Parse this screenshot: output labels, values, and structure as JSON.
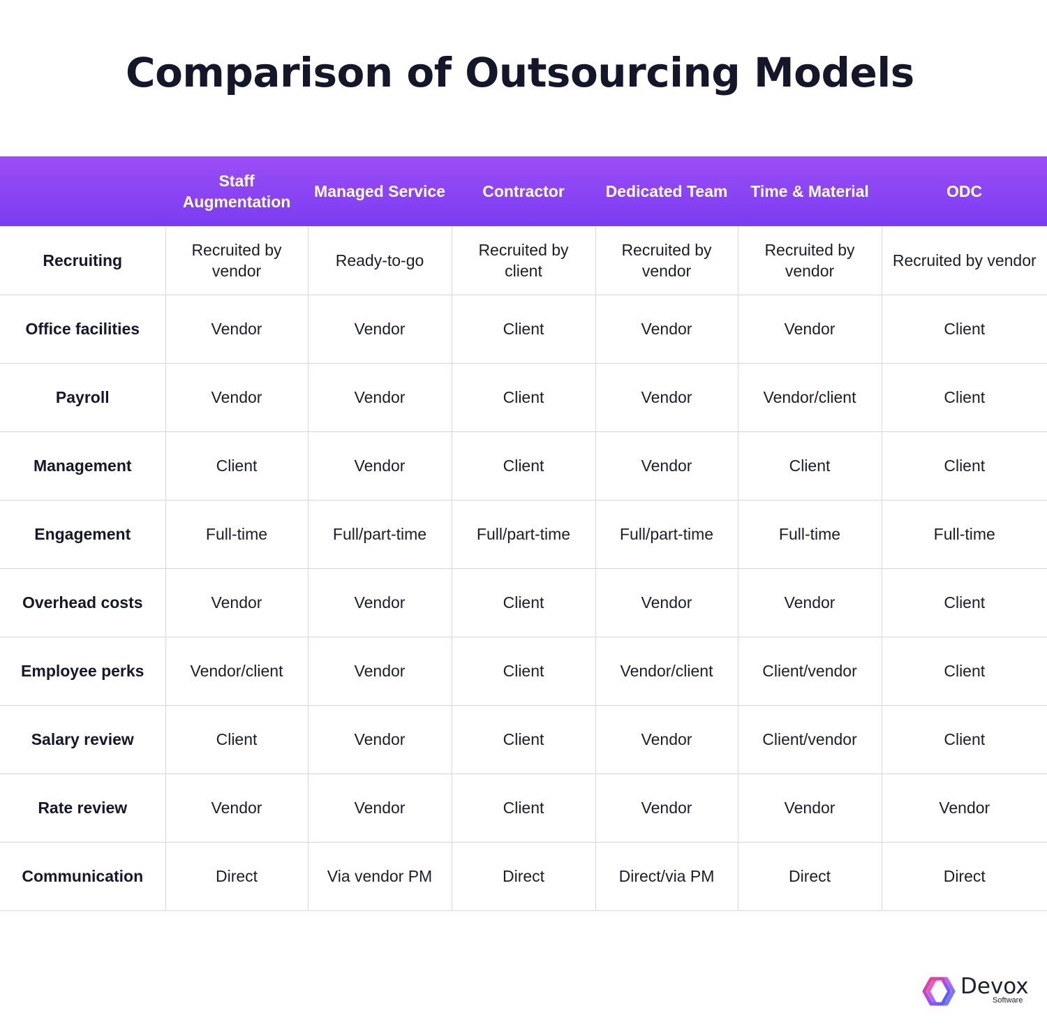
{
  "title": "Comparison of Outsourcing Models",
  "table": {
    "columns": [
      "",
      "Staff Augmentation",
      "Managed Service",
      "Contractor",
      "Dedicated Team",
      "Time & Material",
      "ODC"
    ],
    "rows": [
      {
        "label": "Recruiting",
        "cells": [
          "Recruited by vendor",
          "Ready-to-go",
          "Recruited by client",
          "Recruited by vendor",
          "Recruited by vendor",
          "Recruited by vendor"
        ]
      },
      {
        "label": "Office facilities",
        "cells": [
          "Vendor",
          "Vendor",
          "Client",
          "Vendor",
          "Vendor",
          "Client"
        ]
      },
      {
        "label": "Payroll",
        "cells": [
          "Vendor",
          "Vendor",
          "Client",
          "Vendor",
          "Vendor/client",
          "Client"
        ]
      },
      {
        "label": "Management",
        "cells": [
          "Client",
          "Vendor",
          "Client",
          "Vendor",
          "Client",
          "Client"
        ]
      },
      {
        "label": "Engagement",
        "cells": [
          "Full-time",
          "Full/part-time",
          "Full/part-time",
          "Full/part-time",
          "Full-time",
          "Full-time"
        ]
      },
      {
        "label": "Overhead costs",
        "cells": [
          "Vendor",
          "Vendor",
          "Client",
          "Vendor",
          "Vendor",
          "Client"
        ]
      },
      {
        "label": "Employee perks",
        "cells": [
          "Vendor/client",
          "Vendor",
          "Client",
          "Vendor/client",
          "Client/vendor",
          "Client"
        ]
      },
      {
        "label": "Salary review",
        "cells": [
          "Client",
          "Vendor",
          "Client",
          "Vendor",
          "Client/vendor",
          "Client"
        ]
      },
      {
        "label": "Rate review",
        "cells": [
          "Vendor",
          "Vendor",
          "Client",
          "Vendor",
          "Vendor",
          "Vendor"
        ]
      },
      {
        "label": "Communication",
        "cells": [
          "Direct",
          "Via vendor PM",
          "Direct",
          "Direct/via PM",
          "Direct",
          "Direct"
        ]
      }
    ]
  },
  "logo": {
    "name": "Devox",
    "sub": "Software"
  },
  "colors": {
    "header_top": "#9c4ef5",
    "header_bottom": "#7a3cf2",
    "grid_line": "#d6d6d6"
  }
}
